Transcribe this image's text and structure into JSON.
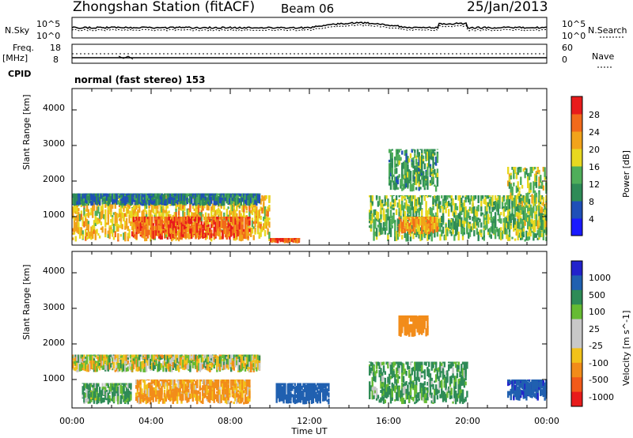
{
  "header": {
    "station": "Zhongshan Station (fitACF)",
    "beam": "Beam 06",
    "date": "25/Jan/2013"
  },
  "noise_panel": {
    "left_label": "N.Sky",
    "right_label": "N.Search",
    "left_ticks": [
      "10^5",
      "10^0"
    ],
    "right_ticks": [
      "10^5",
      "10^0"
    ]
  },
  "freq_panel": {
    "left_label_line1": "Freq.",
    "left_label_line2": "[MHz]",
    "left_ticks": [
      "18",
      "8"
    ],
    "right_ticks": [
      "60",
      "0"
    ],
    "right_label": "Nave"
  },
  "cpid": {
    "label": "CPID",
    "value": "normal (fast stereo) 153"
  },
  "colors": {
    "power": [
      "#1a1aff",
      "#1f4fb8",
      "#2e8b57",
      "#4fae5a",
      "#e8d820",
      "#f2a31a",
      "#f26a1b",
      "#e81b1b"
    ],
    "velocity": [
      "#2222cc",
      "#2060b0",
      "#2e8b57",
      "#66bb33",
      "#c8c8c8",
      "#c8c8c8",
      "#f2c21a",
      "#f28c1a",
      "#f25a1a",
      "#e81b1b"
    ]
  },
  "chart_data": [
    {
      "type": "heatmap",
      "panel": "power",
      "ylabel": "Slant Range [km]",
      "yticks": [
        "1000",
        "2000",
        "3000",
        "4000"
      ],
      "ylim": [
        200,
        4600
      ],
      "xlim": [
        0,
        24
      ],
      "colorbar_label": "Power [dB]",
      "colorbar_ticks": [
        "4",
        "8",
        "12",
        "16",
        "20",
        "24",
        "28"
      ],
      "colorbar_range": [
        0,
        32
      ],
      "regions": [
        {
          "t": [
            0,
            10
          ],
          "r": [
            300,
            1600
          ],
          "value": 20
        },
        {
          "t": [
            3,
            9
          ],
          "r": [
            350,
            1000
          ],
          "value": 26
        },
        {
          "t": [
            0,
            9.5
          ],
          "r": [
            1300,
            1650
          ],
          "value": 9
        },
        {
          "t": [
            10,
            11.5
          ],
          "r": [
            250,
            400
          ],
          "value": 27
        },
        {
          "t": [
            15,
            24
          ],
          "r": [
            300,
            1600
          ],
          "value": 14
        },
        {
          "t": [
            16.5,
            18.5
          ],
          "r": [
            500,
            1000
          ],
          "value": 22
        },
        {
          "t": [
            16,
            18.5
          ],
          "r": [
            1700,
            2900
          ],
          "value": 12
        },
        {
          "t": [
            22,
            24
          ],
          "r": [
            400,
            2400
          ],
          "value": 16
        }
      ]
    },
    {
      "type": "heatmap",
      "panel": "velocity",
      "ylabel": "Slant Range [km]",
      "yticks": [
        "1000",
        "2000",
        "3000",
        "4000"
      ],
      "ylim": [
        200,
        4600
      ],
      "xlim": [
        0,
        24
      ],
      "xticks": [
        "00:00",
        "04:00",
        "08:00",
        "12:00",
        "16:00",
        "20:00",
        "00:00"
      ],
      "xlabel": "Time UT",
      "colorbar_label": "Velocity [m s^-1]",
      "colorbar_ticks": [
        "1000",
        "500",
        "100",
        "25",
        "-25",
        "-100",
        "-500",
        "-1000"
      ],
      "regions": [
        {
          "t": [
            0,
            9.5
          ],
          "r": [
            1200,
            1700
          ],
          "value": 0
        },
        {
          "t": [
            3.2,
            9
          ],
          "r": [
            300,
            1000
          ],
          "value": -150
        },
        {
          "t": [
            0.5,
            3
          ],
          "r": [
            300,
            900
          ],
          "value": 120
        },
        {
          "t": [
            10.3,
            13
          ],
          "r": [
            300,
            900
          ],
          "value": 700
        },
        {
          "t": [
            15,
            20
          ],
          "r": [
            300,
            1500
          ],
          "value": 150
        },
        {
          "t": [
            16.5,
            18
          ],
          "r": [
            2200,
            2800
          ],
          "value": -300
        },
        {
          "t": [
            22,
            24
          ],
          "r": [
            400,
            1000
          ],
          "value": 900
        }
      ]
    }
  ]
}
